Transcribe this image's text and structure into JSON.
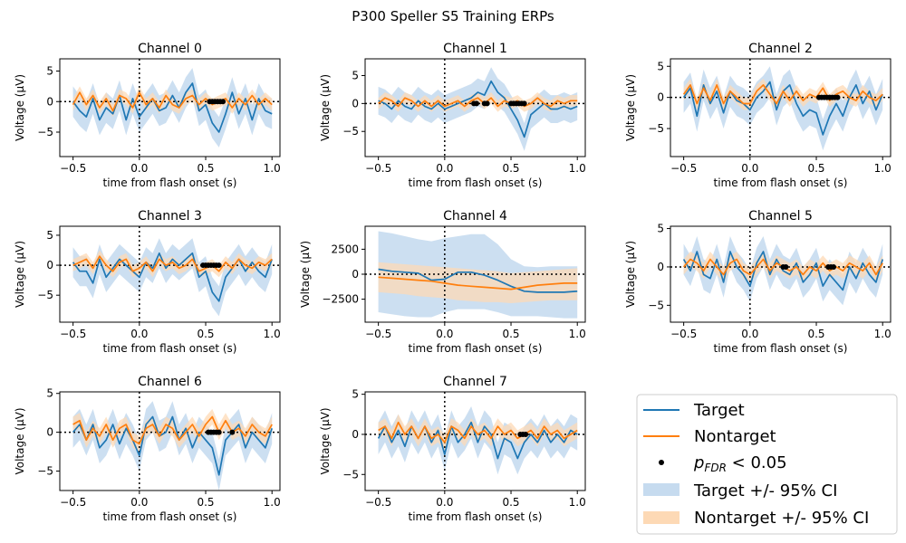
{
  "figure_title": "P300 Speller S5 Training ERPs",
  "colors": {
    "target": "#1f77b4",
    "nontarget": "#ff7f0e",
    "target_ci": "#c6dbef",
    "nontarget_ci": "#fdd9b5"
  },
  "legend": {
    "target": "Target",
    "nontarget": "Nontarget",
    "sig_p": "p",
    "sig_sub": "FDR",
    "sig_rest": " < 0.05",
    "target_ci": "Target +/- 95% CI",
    "nontarget_ci": "Nontarget +/- 95% CI"
  },
  "chart_data": [
    {
      "type": "line",
      "title": "Channel 0",
      "xlabel": "time from flash onset (s)",
      "ylabel": "Voltage (μV)",
      "xlim": [
        -0.6,
        1.06
      ],
      "ylim": [
        -9,
        7
      ],
      "xticks": [
        -0.5,
        0.0,
        0.5,
        1.0
      ],
      "xtick_labels": [
        "−0.5",
        "0.0",
        "0.5",
        "1.0"
      ],
      "yticks": [
        -5,
        0,
        5
      ],
      "ytick_labels": [
        "−5",
        "0",
        "5"
      ],
      "x": [
        -0.5,
        -0.45,
        -0.4,
        -0.35,
        -0.3,
        -0.25,
        -0.2,
        -0.15,
        -0.1,
        -0.05,
        0,
        0.05,
        0.1,
        0.15,
        0.2,
        0.25,
        0.3,
        0.35,
        0.4,
        0.45,
        0.5,
        0.55,
        0.6,
        0.65,
        0.7,
        0.75,
        0.8,
        0.85,
        0.9,
        0.95,
        1.0
      ],
      "series": [
        {
          "name": "Target",
          "values": [
            0,
            -1.5,
            -2.5,
            0.5,
            -3,
            -1,
            -2,
            1,
            -3,
            0.5,
            -2.5,
            -1,
            0.5,
            -1.5,
            -1,
            1,
            -1,
            1.5,
            3,
            -1.5,
            -0.5,
            -3.5,
            -5,
            -2,
            1.5,
            -2,
            0.5,
            -3,
            0.5,
            -1.5,
            -2
          ],
          "ci": 2.5
        },
        {
          "name": "Nontarget",
          "values": [
            -0.5,
            1.5,
            -0.5,
            1,
            -1,
            0.5,
            -1.5,
            1,
            0.5,
            -1,
            1.5,
            -0.5,
            0.5,
            -1,
            1,
            -0.5,
            -1,
            0.5,
            1,
            -0.5,
            0.5,
            -0.5,
            0,
            0.5,
            -1,
            0.5,
            -0.5,
            1,
            -0.5,
            0.5,
            -0.5
          ],
          "ci": 1.0
        }
      ],
      "significant_x": [
        0.53,
        0.55,
        0.57,
        0.59,
        0.61,
        0.63
      ]
    },
    {
      "type": "line",
      "title": "Channel 1",
      "xlabel": "time from flash onset (s)",
      "ylabel": "Voltage (μV)",
      "xlim": [
        -0.6,
        1.06
      ],
      "ylim": [
        -9.5,
        8
      ],
      "xticks": [
        -0.5,
        0.0,
        0.5,
        1.0
      ],
      "xtick_labels": [
        "−0.5",
        "0.0",
        "0.5",
        "1.0"
      ],
      "yticks": [
        -5,
        0,
        5
      ],
      "ytick_labels": [
        "−5",
        "0",
        "5"
      ],
      "x": [
        -0.5,
        -0.45,
        -0.4,
        -0.35,
        -0.3,
        -0.25,
        -0.2,
        -0.15,
        -0.1,
        -0.05,
        0,
        0.05,
        0.1,
        0.15,
        0.2,
        0.25,
        0.3,
        0.35,
        0.4,
        0.45,
        0.5,
        0.55,
        0.6,
        0.65,
        0.7,
        0.75,
        0.8,
        0.85,
        0.9,
        0.95,
        1.0
      ],
      "series": [
        {
          "name": "Target",
          "values": [
            0.5,
            0,
            -1,
            0.5,
            -0.5,
            -1,
            0.5,
            -0.5,
            -1,
            0,
            -1,
            -0.5,
            0,
            0.5,
            1,
            2,
            1.5,
            4,
            2,
            1,
            -1,
            -3,
            -6,
            -2,
            -1,
            0,
            -1,
            -1,
            -0.5,
            -1,
            -0.5
          ],
          "ci": 2.5
        },
        {
          "name": "Nontarget",
          "values": [
            0,
            1,
            0.5,
            -0.5,
            1,
            0.5,
            -0.5,
            0.5,
            -0.5,
            0.5,
            -0.5,
            0,
            0.5,
            -0.5,
            0.5,
            1,
            0,
            1,
            -0.5,
            0.5,
            0,
            0.5,
            -0.5,
            0,
            1,
            0,
            -0.5,
            0.5,
            0,
            0.5,
            0.5
          ],
          "ci": 1.0
        }
      ],
      "significant_x": [
        0.22,
        0.24,
        0.3,
        0.32,
        0.5,
        0.52,
        0.54,
        0.56,
        0.58,
        0.6
      ]
    },
    {
      "type": "line",
      "title": "Channel 2",
      "xlabel": "time from flash onset (s)",
      "ylabel": "Voltage (μV)",
      "xlim": [
        -0.6,
        1.06
      ],
      "ylim": [
        -9.5,
        6.2
      ],
      "xticks": [
        -0.5,
        0.0,
        0.5,
        1.0
      ],
      "xtick_labels": [
        "−0.5",
        "0.0",
        "0.5",
        "1.0"
      ],
      "yticks": [
        -5,
        0,
        5
      ],
      "ytick_labels": [
        "−5",
        "0",
        "5"
      ],
      "x": [
        -0.5,
        -0.45,
        -0.4,
        -0.35,
        -0.3,
        -0.25,
        -0.2,
        -0.15,
        -0.1,
        -0.05,
        0,
        0.05,
        0.1,
        0.15,
        0.2,
        0.25,
        0.3,
        0.35,
        0.4,
        0.45,
        0.5,
        0.55,
        0.6,
        0.65,
        0.7,
        0.75,
        0.8,
        0.85,
        0.9,
        0.95,
        1.0
      ],
      "series": [
        {
          "name": "Target",
          "values": [
            0,
            1.5,
            -3,
            2,
            -1,
            1,
            -2.5,
            1,
            -0.5,
            -1,
            -2,
            0,
            1,
            2.5,
            -2,
            1,
            2,
            -1,
            -3,
            -2,
            -2.5,
            -6,
            -3,
            -1,
            -3,
            0,
            2,
            -1,
            1,
            -2,
            0.5
          ],
          "ci": 2.5
        },
        {
          "name": "Nontarget",
          "values": [
            0.5,
            2,
            -1,
            1.5,
            -0.5,
            2,
            -1,
            1,
            0,
            -1,
            -1,
            1,
            2,
            0.5,
            -1,
            1,
            -0.5,
            1,
            -0.5,
            0.5,
            0,
            1.5,
            -0.5,
            0.5,
            1,
            0,
            -0.5,
            1,
            0,
            -0.5,
            0.5
          ],
          "ci": 1.0
        }
      ],
      "significant_x": [
        0.52,
        0.54,
        0.56,
        0.58,
        0.6,
        0.62,
        0.64,
        0.66
      ]
    },
    {
      "type": "line",
      "title": "Channel 3",
      "xlabel": "time from flash onset (s)",
      "ylabel": "Voltage (μV)",
      "xlim": [
        -0.6,
        1.06
      ],
      "ylim": [
        -9.5,
        6.5
      ],
      "xticks": [
        -0.5,
        0.0,
        0.5,
        1.0
      ],
      "xtick_labels": [
        "−0.5",
        "0.0",
        "0.5",
        "1.0"
      ],
      "yticks": [
        -5,
        0,
        5
      ],
      "ytick_labels": [
        "−5",
        "0",
        "5"
      ],
      "x": [
        -0.5,
        -0.45,
        -0.4,
        -0.35,
        -0.3,
        -0.25,
        -0.2,
        -0.15,
        -0.1,
        -0.05,
        0,
        0.05,
        0.1,
        0.15,
        0.2,
        0.25,
        0.3,
        0.35,
        0.4,
        0.45,
        0.5,
        0.55,
        0.6,
        0.65,
        0.7,
        0.75,
        0.8,
        0.85,
        0.9,
        0.95,
        1.0
      ],
      "series": [
        {
          "name": "Target",
          "values": [
            0.5,
            -1,
            -1,
            -3,
            1,
            -2,
            -0.5,
            1,
            0,
            -1,
            -2,
            0.5,
            -0.5,
            2,
            -0.5,
            1,
            0,
            1,
            2,
            -2,
            -1,
            -4.5,
            -6,
            -2,
            -0.5,
            1,
            -1,
            0.5,
            -1,
            -2,
            1
          ],
          "ci": 2.5
        },
        {
          "name": "Nontarget",
          "values": [
            0,
            0.5,
            1,
            -0.5,
            1.5,
            0,
            -1,
            0.5,
            1,
            -1,
            -0.5,
            0.5,
            -1,
            1,
            0,
            0.5,
            -0.5,
            0,
            1,
            -1,
            -0.5,
            0,
            -1,
            0.5,
            -0.5,
            1,
            0,
            -0.5,
            0.5,
            0,
            1
          ],
          "ci": 1.0
        }
      ],
      "significant_x": [
        0.48,
        0.5,
        0.52,
        0.54,
        0.56,
        0.58,
        0.6
      ]
    },
    {
      "type": "line",
      "title": "Channel 4",
      "xlabel": "time from flash onset (s)",
      "ylabel": "Voltage (μV)",
      "xlim": [
        -0.6,
        1.06
      ],
      "ylim": [
        -4800,
        4800
      ],
      "xticks": [
        -0.5,
        0.0,
        0.5,
        1.0
      ],
      "xtick_labels": [
        "−0.5",
        "0.0",
        "0.5",
        "1.0"
      ],
      "yticks": [
        -2500,
        0,
        2500
      ],
      "ytick_labels": [
        "−2500",
        "0",
        "2500"
      ],
      "x": [
        -0.5,
        -0.4,
        -0.3,
        -0.2,
        -0.1,
        0,
        0.1,
        0.2,
        0.3,
        0.4,
        0.5,
        0.6,
        0.7,
        0.8,
        0.9,
        1.0
      ],
      "series": [
        {
          "name": "Target",
          "values": [
            500,
            300,
            200,
            100,
            -600,
            -500,
            200,
            200,
            -100,
            -600,
            -1200,
            -1700,
            -1800,
            -1800,
            -1800,
            -1700
          ],
          "lower": [
            -3800,
            -4000,
            -4200,
            -4300,
            -4300,
            -3800,
            -3500,
            -3500,
            -3500,
            -3800,
            -4200,
            -4200,
            -4200,
            -4300,
            -4400,
            -4400
          ],
          "upper": [
            4300,
            4100,
            3800,
            3500,
            3300,
            3600,
            3800,
            4000,
            4000,
            3000,
            1500,
            800,
            700,
            800,
            800,
            800
          ]
        },
        {
          "name": "Nontarget",
          "values": [
            -300,
            -400,
            -500,
            -600,
            -700,
            -900,
            -1100,
            -1200,
            -1300,
            -1400,
            -1500,
            -1300,
            -1100,
            -1000,
            -900,
            -900
          ],
          "lower": [
            -1800,
            -1900,
            -2000,
            -2200,
            -2300,
            -2400,
            -2600,
            -2700,
            -2800,
            -2800,
            -2900,
            -2800,
            -2700,
            -2600,
            -2600,
            -2600
          ],
          "upper": [
            1200,
            1100,
            1000,
            900,
            800,
            700,
            600,
            500,
            400,
            300,
            100,
            200,
            300,
            400,
            500,
            600
          ]
        }
      ],
      "significant_x": []
    },
    {
      "type": "line",
      "title": "Channel 5",
      "xlabel": "time from flash onset (s)",
      "ylabel": "Voltage (μV)",
      "xlim": [
        -0.6,
        1.06
      ],
      "ylim": [
        -7.2,
        5.3
      ],
      "xticks": [
        -0.5,
        0.0,
        0.5,
        1.0
      ],
      "xtick_labels": [
        "−0.5",
        "0.0",
        "0.5",
        "1.0"
      ],
      "yticks": [
        -5,
        0,
        5
      ],
      "ytick_labels": [
        "−5",
        "0",
        "5"
      ],
      "x": [
        -0.5,
        -0.45,
        -0.4,
        -0.35,
        -0.3,
        -0.25,
        -0.2,
        -0.15,
        -0.1,
        -0.05,
        0,
        0.05,
        0.1,
        0.15,
        0.2,
        0.25,
        0.3,
        0.35,
        0.4,
        0.45,
        0.5,
        0.55,
        0.6,
        0.65,
        0.7,
        0.75,
        0.8,
        0.85,
        0.9,
        0.95,
        1.0
      ],
      "series": [
        {
          "name": "Target",
          "values": [
            1,
            -0.5,
            2,
            -1,
            -1.5,
            1,
            -2,
            2,
            0,
            -1,
            -2.5,
            0.5,
            2,
            -1,
            1,
            -0.5,
            -1,
            0.5,
            -2,
            -1,
            0.5,
            -2.5,
            -1,
            -2,
            -3,
            0,
            -1.5,
            0.5,
            -1,
            -2,
            1
          ],
          "ci": 2.0
        },
        {
          "name": "Nontarget",
          "values": [
            0,
            1,
            0.5,
            -0.5,
            1,
            0,
            -1,
            0.5,
            1,
            -0.5,
            -1,
            0,
            1,
            -0.5,
            0.5,
            0,
            -0.5,
            0,
            -1,
            0,
            -0.5,
            0.5,
            -0.5,
            0,
            -0.5,
            0.5,
            0,
            -0.5,
            0.5,
            -1,
            0.5
          ],
          "ci": 1.0
        }
      ],
      "significant_x": [
        0.25,
        0.27,
        0.59,
        0.61,
        0.63
      ]
    },
    {
      "type": "line",
      "title": "Channel 6",
      "xlabel": "time from flash onset (s)",
      "ylabel": "Voltage (μV)",
      "xlim": [
        -0.6,
        1.06
      ],
      "ylim": [
        -7.5,
        5.2
      ],
      "xticks": [
        -0.5,
        0.0,
        0.5,
        1.0
      ],
      "xtick_labels": [
        "−0.5",
        "0.0",
        "0.5",
        "1.0"
      ],
      "yticks": [
        -5,
        0,
        5
      ],
      "ytick_labels": [
        "−5",
        "0",
        "5"
      ],
      "x": [
        -0.5,
        -0.45,
        -0.4,
        -0.35,
        -0.3,
        -0.25,
        -0.2,
        -0.15,
        -0.1,
        -0.05,
        0,
        0.05,
        0.1,
        0.15,
        0.2,
        0.25,
        0.3,
        0.35,
        0.4,
        0.45,
        0.5,
        0.55,
        0.6,
        0.65,
        0.7,
        0.75,
        0.8,
        0.85,
        0.9,
        0.95,
        1.0
      ],
      "series": [
        {
          "name": "Target",
          "values": [
            0,
            1,
            -1,
            1,
            -2,
            -1,
            1,
            -1.5,
            0.5,
            -1,
            -3,
            1,
            2,
            -0.5,
            0,
            2,
            -1,
            0.5,
            -2,
            0,
            -1,
            -2,
            -5.5,
            -1,
            0,
            1,
            -2,
            0,
            -1,
            -2,
            0.5
          ],
          "ci": 2.0
        },
        {
          "name": "Nontarget",
          "values": [
            1,
            1.5,
            -1,
            0.5,
            -0.5,
            1,
            -1,
            0.5,
            1,
            -1,
            -1.5,
            0.5,
            1,
            -0.5,
            1,
            0.5,
            -1,
            0,
            1,
            -0.5,
            1,
            2,
            0,
            1.5,
            0,
            0.5,
            -0.5,
            1,
            0,
            -0.5,
            1
          ],
          "ci": 1.0
        }
      ],
      "significant_x": [
        0.52,
        0.54,
        0.56,
        0.58,
        0.6,
        0.7
      ]
    },
    {
      "type": "line",
      "title": "Channel 7",
      "xlabel": "time from flash onset (s)",
      "ylabel": "Voltage (μV)",
      "xlim": [
        -0.6,
        1.06
      ],
      "ylim": [
        -7,
        5.3
      ],
      "xticks": [
        -0.5,
        0.0,
        0.5,
        1.0
      ],
      "xtick_labels": [
        "−0.5",
        "0.0",
        "0.5",
        "1.0"
      ],
      "yticks": [
        -5,
        0,
        5
      ],
      "ytick_labels": [
        "−5",
        "0",
        "5"
      ],
      "x": [
        -0.5,
        -0.45,
        -0.4,
        -0.35,
        -0.3,
        -0.25,
        -0.2,
        -0.15,
        -0.1,
        -0.05,
        0,
        0.05,
        0.1,
        0.15,
        0.2,
        0.25,
        0.3,
        0.35,
        0.4,
        0.45,
        0.5,
        0.55,
        0.6,
        0.65,
        0.7,
        0.75,
        0.8,
        0.85,
        0.9,
        0.95,
        1.0
      ],
      "series": [
        {
          "name": "Target",
          "values": [
            -0.5,
            1,
            -1,
            0.5,
            -1.5,
            1,
            -0.5,
            1,
            -1,
            0.5,
            -2.5,
            1,
            -1,
            0,
            1.5,
            -1,
            1,
            0,
            -3,
            -0.5,
            -1,
            -3,
            -1,
            0,
            -1,
            0.5,
            -1,
            0,
            -1,
            0.5,
            0
          ],
          "ci": 2.0
        },
        {
          "name": "Nontarget",
          "values": [
            0.5,
            1,
            -0.5,
            1.5,
            0,
            1,
            -0.5,
            1,
            -0.5,
            0,
            -1,
            1,
            0.5,
            -0.5,
            1,
            0,
            0.5,
            -0.5,
            1,
            0,
            0.5,
            -0.5,
            0,
            0.5,
            -0.5,
            1,
            0,
            0.5,
            -0.5,
            0,
            0.5
          ],
          "ci": 1.0
        }
      ],
      "significant_x": [
        0.57,
        0.59,
        0.61
      ]
    }
  ]
}
